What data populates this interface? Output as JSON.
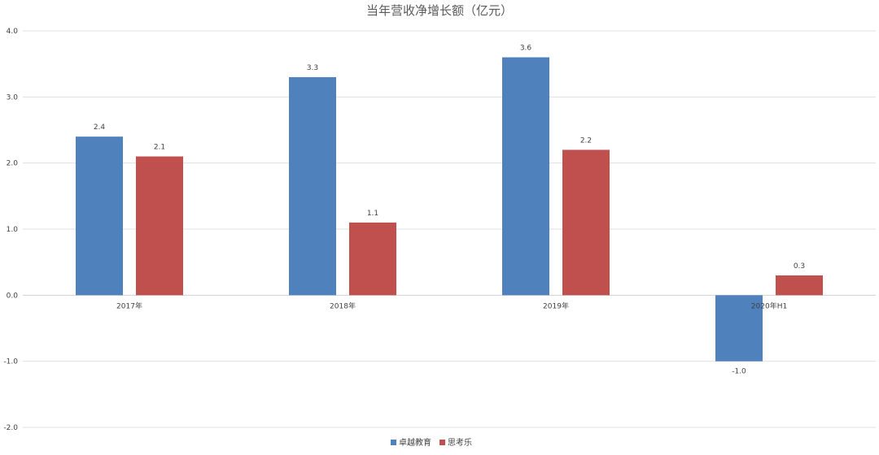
{
  "chart_data": {
    "type": "bar",
    "title": "当年营收净增长额（亿元）",
    "categories": [
      "2017年",
      "2018年",
      "2019年",
      "2020年H1"
    ],
    "series": [
      {
        "name": "卓越教育",
        "color": "#4F81BD",
        "values": [
          2.4,
          3.3,
          3.6,
          -1.0
        ],
        "labels": [
          "2.4",
          "3.3",
          "3.6",
          "-1.0"
        ]
      },
      {
        "name": "思考乐",
        "color": "#C0504D",
        "values": [
          2.1,
          1.1,
          2.2,
          0.3
        ],
        "labels": [
          "2.1",
          "1.1",
          "2.2",
          "0.3"
        ]
      }
    ],
    "ylim": [
      -2.0,
      4.0
    ],
    "yticks": [
      "4.0",
      "3.0",
      "2.0",
      "1.0",
      "0.0",
      "-1.0",
      "-2.0"
    ],
    "ytick_values": [
      4,
      3,
      2,
      1,
      0,
      -1,
      -2
    ],
    "grid": true,
    "legend": "bottom-center"
  }
}
